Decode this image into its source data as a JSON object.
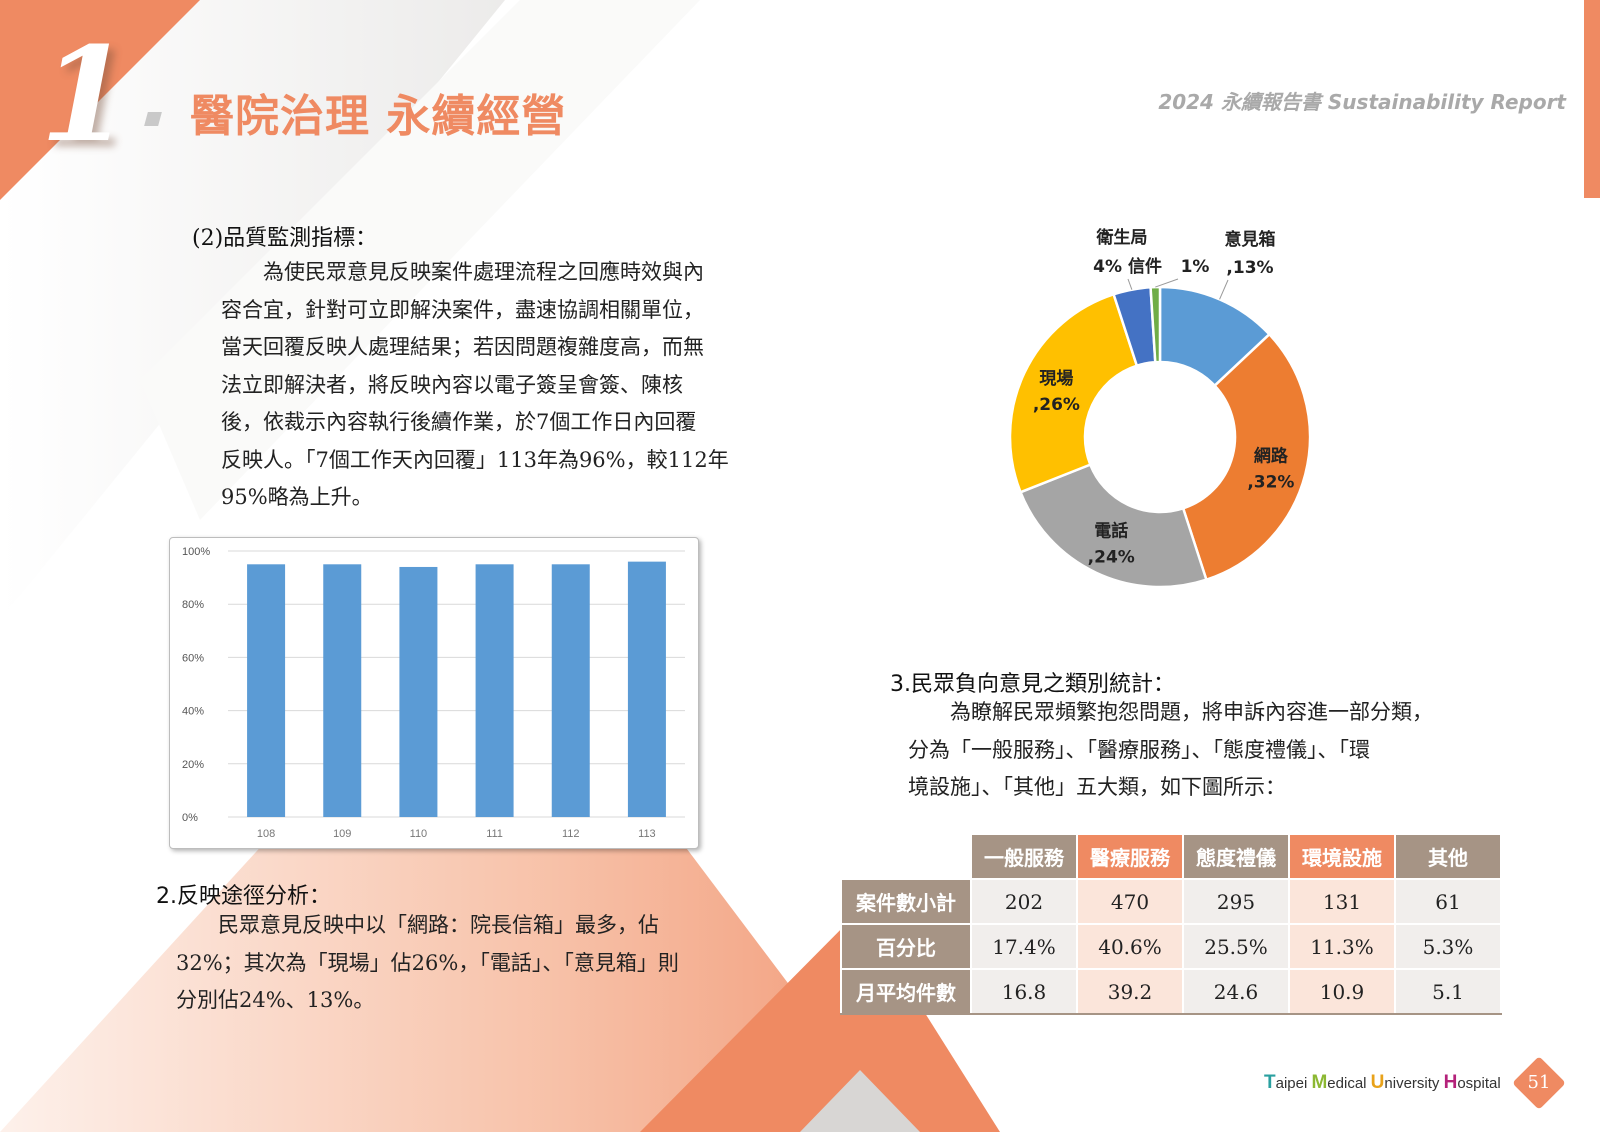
{
  "header": {
    "chapter_number": "1",
    "chapter_title": "醫院治理 永續經營",
    "report_title": "2024 永續報告書 Sustainability Report"
  },
  "section_quality": {
    "heading": "(2)品質監測指標：",
    "lines": [
      "為使民眾意見反映案件處理流程之回應時效與內",
      "容合宜，針對可立即解決案件，盡速協調相關單位，",
      "當天回覆反映人處理結果；若因問題複雜度高，而無",
      "法立即解決者，將反映內容以電子簽呈會簽、陳核",
      "後，依裁示內容執行後續作業，於7個工作日內回覆",
      "反映人。「7個工作天內回覆」113年為96%，較112年",
      "95%略為上升。"
    ]
  },
  "section_channel": {
    "heading": "2.反映途徑分析：",
    "lines": [
      "民眾意見反映中以「網路：院長信箱」最多，佔",
      "32%；其次為「現場」佔26%，「電話」、「意見箱」則",
      "分別佔24%、13%。"
    ]
  },
  "section_category": {
    "heading": "3.民眾負向意見之類別統計：",
    "lines": [
      "為瞭解民眾頻繁抱怨問題，將申訴內容進一部分類，",
      "分為「一般服務」、「醫療服務」、「態度禮儀」、「環",
      "境設施」、「其他」五大類，如下圖所示："
    ]
  },
  "chart_data": [
    {
      "type": "bar",
      "categories": [
        "108",
        "109",
        "110",
        "111",
        "112",
        "113"
      ],
      "values": [
        95,
        95,
        94,
        95,
        95,
        96
      ],
      "ylim": [
        0,
        100
      ],
      "yticks": [
        "0%",
        "20%",
        "40%",
        "60%",
        "80%",
        "100%"
      ],
      "grid": true,
      "color": "#5b9bd5"
    },
    {
      "type": "pie",
      "donut": true,
      "slices": [
        {
          "label": "意見箱",
          "pct_label": ",13%",
          "value": 13,
          "color": "#5b9bd5"
        },
        {
          "label": "網路",
          "pct_label": ",32%",
          "value": 32,
          "color": "#ed7d31"
        },
        {
          "label": "電話",
          "pct_label": ",24%",
          "value": 24,
          "color": "#a5a5a5"
        },
        {
          "label": "現場",
          "pct_label": ",26%",
          "value": 26,
          "color": "#ffc000"
        },
        {
          "label": "衛生局",
          "pct_label": "4%",
          "value": 4,
          "color": "#4472c4"
        },
        {
          "label": "信件",
          "pct_label": "1%",
          "value": 1,
          "color": "#70ad47"
        }
      ]
    }
  ],
  "table": {
    "columns": [
      "一般服務",
      "醫療服務",
      "態度禮儀",
      "環境設施",
      "其他"
    ],
    "rows": [
      {
        "label": "案件數小計",
        "values": [
          "202",
          "470",
          "295",
          "131",
          "61"
        ]
      },
      {
        "label": "百分比",
        "values": [
          "17.4%",
          "40.6%",
          "25.5%",
          "11.3%",
          "5.3%"
        ]
      },
      {
        "label": "月平均件數",
        "values": [
          "16.8",
          "39.2",
          "24.6",
          "10.9",
          "5.1"
        ]
      }
    ]
  },
  "footer": {
    "logo_T": "T",
    "logo_aipei": "aipei ",
    "logo_M": "M",
    "logo_edical": "edical ",
    "logo_U": "U",
    "logo_niversity": "niversity ",
    "logo_H": "H",
    "logo_ospital": "ospital",
    "page_number": "51"
  }
}
